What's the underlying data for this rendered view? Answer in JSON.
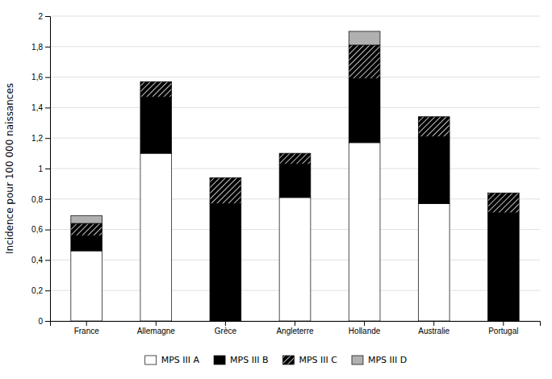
{
  "chart_data": {
    "type": "bar",
    "stacked": true,
    "ylabel": "Incidence pour 100 000 naissances",
    "categories": [
      "France",
      "Allemagne",
      "Grèce",
      "Angleterre",
      "Hollande",
      "Australie",
      "Portugal"
    ],
    "series": [
      {
        "name": "MPS III A",
        "color": "#ffffff",
        "values": [
          0.46,
          1.1,
          0.0,
          0.81,
          1.17,
          0.77,
          0.0
        ]
      },
      {
        "name": "MPS III B",
        "color": "#000000",
        "values": [
          0.1,
          0.37,
          0.77,
          0.22,
          0.42,
          0.44,
          0.71
        ]
      },
      {
        "name": "MPS III C",
        "color": "#000000",
        "values": [
          0.08,
          0.1,
          0.17,
          0.07,
          0.22,
          0.13,
          0.13
        ]
      },
      {
        "name": "MPS III D",
        "color": "#b0b0b0",
        "values": [
          0.05,
          0.0,
          0.0,
          0.0,
          0.09,
          0.0,
          0.0
        ]
      }
    ],
    "ylim": [
      0,
      2.0
    ],
    "yticks": [
      0,
      {
        "value": 0.2,
        "label": "0,2"
      },
      {
        "value": 0.4,
        "label": "0,4"
      },
      {
        "value": 0.6,
        "label": "0,6"
      },
      {
        "value": 0.8,
        "label": "0,8"
      },
      1,
      {
        "value": 1.2,
        "label": "1,2"
      },
      {
        "value": 1.4,
        "label": "1,4"
      },
      {
        "value": 1.6,
        "label": "1,6"
      },
      {
        "value": 1.8,
        "label": "1,8"
      },
      2
    ],
    "grid": true,
    "legend": "bottom"
  }
}
